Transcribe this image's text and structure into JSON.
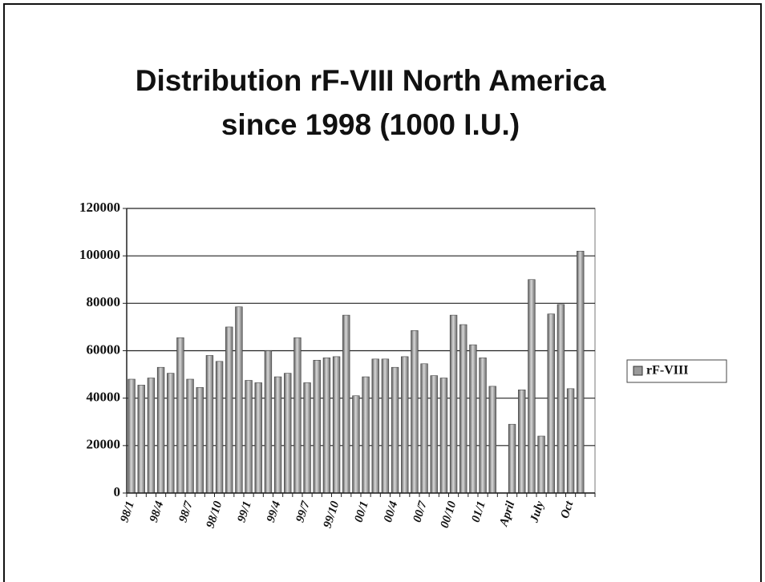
{
  "chart_data": {
    "type": "bar",
    "title": [
      "Distribution rF-VIII North America",
      "since 1998  (1000 I.U.)"
    ],
    "categories": [
      "98/1",
      null,
      null,
      "98/4",
      null,
      null,
      "98/7",
      null,
      null,
      "98/10",
      null,
      null,
      "99/1",
      null,
      null,
      "99/4",
      null,
      null,
      "99/7",
      null,
      null,
      "99/10",
      null,
      null,
      "00/1",
      null,
      null,
      "00/4",
      null,
      null,
      "00/7",
      null,
      null,
      "00/10",
      null,
      null,
      "01/1",
      null,
      null,
      "April",
      null,
      null,
      "July",
      null,
      null,
      "Oct",
      null,
      null
    ],
    "series": [
      {
        "name": "rF-VIII",
        "color": "#9a9a9a",
        "values": [
          48000,
          45500,
          48500,
          53000,
          50500,
          65500,
          48000,
          44500,
          58000,
          55500,
          70000,
          78500,
          47500,
          46500,
          60000,
          49000,
          50500,
          65500,
          46500,
          56000,
          57000,
          57500,
          75000,
          41000,
          49000,
          56500,
          56500,
          53000,
          57500,
          68500,
          54500,
          49500,
          48500,
          75000,
          71000,
          62500,
          57000,
          45000,
          null,
          29000,
          43500,
          90000,
          24000,
          75500,
          79500,
          44000,
          102000,
          null
        ]
      }
    ],
    "ylim": [
      0,
      120000
    ],
    "yticks": [
      0,
      20000,
      40000,
      60000,
      80000,
      100000,
      120000
    ],
    "grid": true,
    "legend": "right"
  }
}
